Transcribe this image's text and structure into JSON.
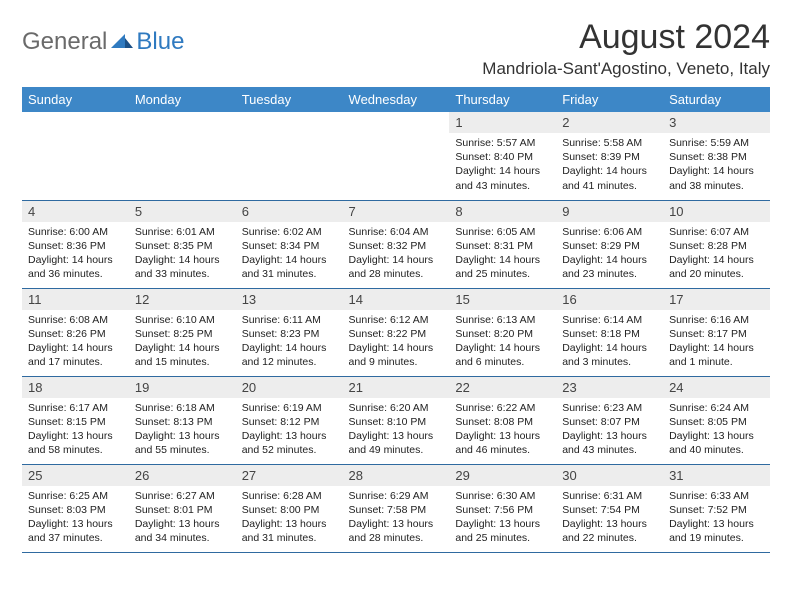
{
  "logo": {
    "word1": "General",
    "word2": "Blue"
  },
  "title": "August 2024",
  "location": "Mandriola-Sant'Agostino, Veneto, Italy",
  "colors": {
    "header_bg": "#3d87c7",
    "header_text": "#ffffff",
    "daynum_bg": "#ededed",
    "row_border": "#2f6aa0",
    "logo_gray": "#6a6a6a",
    "logo_blue": "#2f7ac0"
  },
  "weekdays": [
    "Sunday",
    "Monday",
    "Tuesday",
    "Wednesday",
    "Thursday",
    "Friday",
    "Saturday"
  ],
  "weeks": [
    [
      null,
      null,
      null,
      null,
      {
        "n": "1",
        "sr": "5:57 AM",
        "ss": "8:40 PM",
        "dl": "14 hours and 43 minutes."
      },
      {
        "n": "2",
        "sr": "5:58 AM",
        "ss": "8:39 PM",
        "dl": "14 hours and 41 minutes."
      },
      {
        "n": "3",
        "sr": "5:59 AM",
        "ss": "8:38 PM",
        "dl": "14 hours and 38 minutes."
      }
    ],
    [
      {
        "n": "4",
        "sr": "6:00 AM",
        "ss": "8:36 PM",
        "dl": "14 hours and 36 minutes."
      },
      {
        "n": "5",
        "sr": "6:01 AM",
        "ss": "8:35 PM",
        "dl": "14 hours and 33 minutes."
      },
      {
        "n": "6",
        "sr": "6:02 AM",
        "ss": "8:34 PM",
        "dl": "14 hours and 31 minutes."
      },
      {
        "n": "7",
        "sr": "6:04 AM",
        "ss": "8:32 PM",
        "dl": "14 hours and 28 minutes."
      },
      {
        "n": "8",
        "sr": "6:05 AM",
        "ss": "8:31 PM",
        "dl": "14 hours and 25 minutes."
      },
      {
        "n": "9",
        "sr": "6:06 AM",
        "ss": "8:29 PM",
        "dl": "14 hours and 23 minutes."
      },
      {
        "n": "10",
        "sr": "6:07 AM",
        "ss": "8:28 PM",
        "dl": "14 hours and 20 minutes."
      }
    ],
    [
      {
        "n": "11",
        "sr": "6:08 AM",
        "ss": "8:26 PM",
        "dl": "14 hours and 17 minutes."
      },
      {
        "n": "12",
        "sr": "6:10 AM",
        "ss": "8:25 PM",
        "dl": "14 hours and 15 minutes."
      },
      {
        "n": "13",
        "sr": "6:11 AM",
        "ss": "8:23 PM",
        "dl": "14 hours and 12 minutes."
      },
      {
        "n": "14",
        "sr": "6:12 AM",
        "ss": "8:22 PM",
        "dl": "14 hours and 9 minutes."
      },
      {
        "n": "15",
        "sr": "6:13 AM",
        "ss": "8:20 PM",
        "dl": "14 hours and 6 minutes."
      },
      {
        "n": "16",
        "sr": "6:14 AM",
        "ss": "8:18 PM",
        "dl": "14 hours and 3 minutes."
      },
      {
        "n": "17",
        "sr": "6:16 AM",
        "ss": "8:17 PM",
        "dl": "14 hours and 1 minute."
      }
    ],
    [
      {
        "n": "18",
        "sr": "6:17 AM",
        "ss": "8:15 PM",
        "dl": "13 hours and 58 minutes."
      },
      {
        "n": "19",
        "sr": "6:18 AM",
        "ss": "8:13 PM",
        "dl": "13 hours and 55 minutes."
      },
      {
        "n": "20",
        "sr": "6:19 AM",
        "ss": "8:12 PM",
        "dl": "13 hours and 52 minutes."
      },
      {
        "n": "21",
        "sr": "6:20 AM",
        "ss": "8:10 PM",
        "dl": "13 hours and 49 minutes."
      },
      {
        "n": "22",
        "sr": "6:22 AM",
        "ss": "8:08 PM",
        "dl": "13 hours and 46 minutes."
      },
      {
        "n": "23",
        "sr": "6:23 AM",
        "ss": "8:07 PM",
        "dl": "13 hours and 43 minutes."
      },
      {
        "n": "24",
        "sr": "6:24 AM",
        "ss": "8:05 PM",
        "dl": "13 hours and 40 minutes."
      }
    ],
    [
      {
        "n": "25",
        "sr": "6:25 AM",
        "ss": "8:03 PM",
        "dl": "13 hours and 37 minutes."
      },
      {
        "n": "26",
        "sr": "6:27 AM",
        "ss": "8:01 PM",
        "dl": "13 hours and 34 minutes."
      },
      {
        "n": "27",
        "sr": "6:28 AM",
        "ss": "8:00 PM",
        "dl": "13 hours and 31 minutes."
      },
      {
        "n": "28",
        "sr": "6:29 AM",
        "ss": "7:58 PM",
        "dl": "13 hours and 28 minutes."
      },
      {
        "n": "29",
        "sr": "6:30 AM",
        "ss": "7:56 PM",
        "dl": "13 hours and 25 minutes."
      },
      {
        "n": "30",
        "sr": "6:31 AM",
        "ss": "7:54 PM",
        "dl": "13 hours and 22 minutes."
      },
      {
        "n": "31",
        "sr": "6:33 AM",
        "ss": "7:52 PM",
        "dl": "13 hours and 19 minutes."
      }
    ]
  ],
  "labels": {
    "sunrise": "Sunrise:",
    "sunset": "Sunset:",
    "daylight": "Daylight:"
  }
}
